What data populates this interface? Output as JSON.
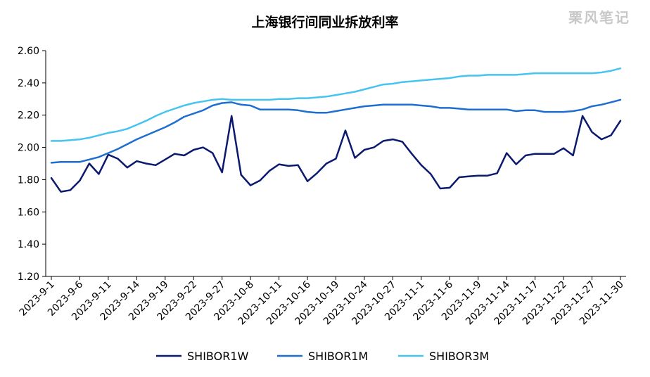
{
  "watermark": "栗风笔记",
  "chart_data": {
    "type": "line",
    "title": "上海银行间同业拆放利率",
    "xlabel": "",
    "ylabel": "",
    "ylim": [
      1.2,
      2.6
    ],
    "yticks": [
      "1.20",
      "1.40",
      "1.60",
      "1.80",
      "2.00",
      "2.20",
      "2.40",
      "2.60"
    ],
    "grid": false,
    "legend_position": "bottom",
    "x_tick_labels": [
      "2023-9-1",
      "2023-9-6",
      "2023-9-11",
      "2023-9-14",
      "2023-9-19",
      "2023-9-22",
      "2023-9-27",
      "2023-10-8",
      "2023-10-11",
      "2023-10-16",
      "2023-10-19",
      "2023-10-24",
      "2023-10-27",
      "2023-11-1",
      "2023-11-6",
      "2023-11-9",
      "2023-11-14",
      "2023-11-17",
      "2023-11-22",
      "2023-11-27",
      "2023-11-30"
    ],
    "series": [
      {
        "name": "SHIBOR1W",
        "color": "#0b1a6e",
        "values": [
          1.81,
          1.725,
          1.735,
          1.795,
          1.9,
          1.835,
          1.955,
          1.93,
          1.875,
          1.915,
          1.9,
          1.89,
          1.925,
          1.96,
          1.95,
          1.985,
          2.0,
          1.965,
          1.845,
          2.195,
          1.83,
          1.765,
          1.795,
          1.855,
          1.895,
          1.885,
          1.89,
          1.79,
          1.84,
          1.9,
          1.93,
          2.105,
          1.935,
          1.985,
          2.0,
          2.04,
          2.05,
          2.035,
          1.96,
          1.89,
          1.835,
          1.745,
          1.75,
          1.815,
          1.82,
          1.825,
          1.825,
          1.84,
          1.965,
          1.895,
          1.95,
          1.96,
          1.96,
          1.96,
          1.995,
          1.95,
          2.195,
          2.095,
          2.05,
          2.075,
          2.165
        ]
      },
      {
        "name": "SHIBOR1M",
        "color": "#1e6ed2",
        "values": [
          1.905,
          1.91,
          1.91,
          1.91,
          1.925,
          1.94,
          1.965,
          1.99,
          2.02,
          2.05,
          2.075,
          2.1,
          2.125,
          2.155,
          2.19,
          2.21,
          2.23,
          2.26,
          2.275,
          2.28,
          2.265,
          2.26,
          2.235,
          2.235,
          2.235,
          2.235,
          2.23,
          2.22,
          2.215,
          2.215,
          2.225,
          2.235,
          2.245,
          2.255,
          2.26,
          2.265,
          2.265,
          2.265,
          2.265,
          2.26,
          2.255,
          2.245,
          2.245,
          2.24,
          2.235,
          2.235,
          2.235,
          2.235,
          2.235,
          2.225,
          2.23,
          2.23,
          2.22,
          2.22,
          2.22,
          2.225,
          2.235,
          2.255,
          2.265,
          2.28,
          2.295
        ]
      },
      {
        "name": "SHIBOR3M",
        "color": "#45c4f0",
        "values": [
          2.04,
          2.04,
          2.045,
          2.05,
          2.06,
          2.075,
          2.09,
          2.1,
          2.115,
          2.14,
          2.165,
          2.195,
          2.22,
          2.24,
          2.26,
          2.275,
          2.285,
          2.295,
          2.3,
          2.295,
          2.295,
          2.295,
          2.295,
          2.295,
          2.3,
          2.3,
          2.305,
          2.305,
          2.31,
          2.315,
          2.325,
          2.335,
          2.345,
          2.36,
          2.375,
          2.39,
          2.395,
          2.405,
          2.41,
          2.415,
          2.42,
          2.425,
          2.43,
          2.44,
          2.445,
          2.445,
          2.45,
          2.45,
          2.45,
          2.45,
          2.455,
          2.46,
          2.46,
          2.46,
          2.46,
          2.46,
          2.46,
          2.46,
          2.465,
          2.475,
          2.49
        ]
      }
    ]
  }
}
